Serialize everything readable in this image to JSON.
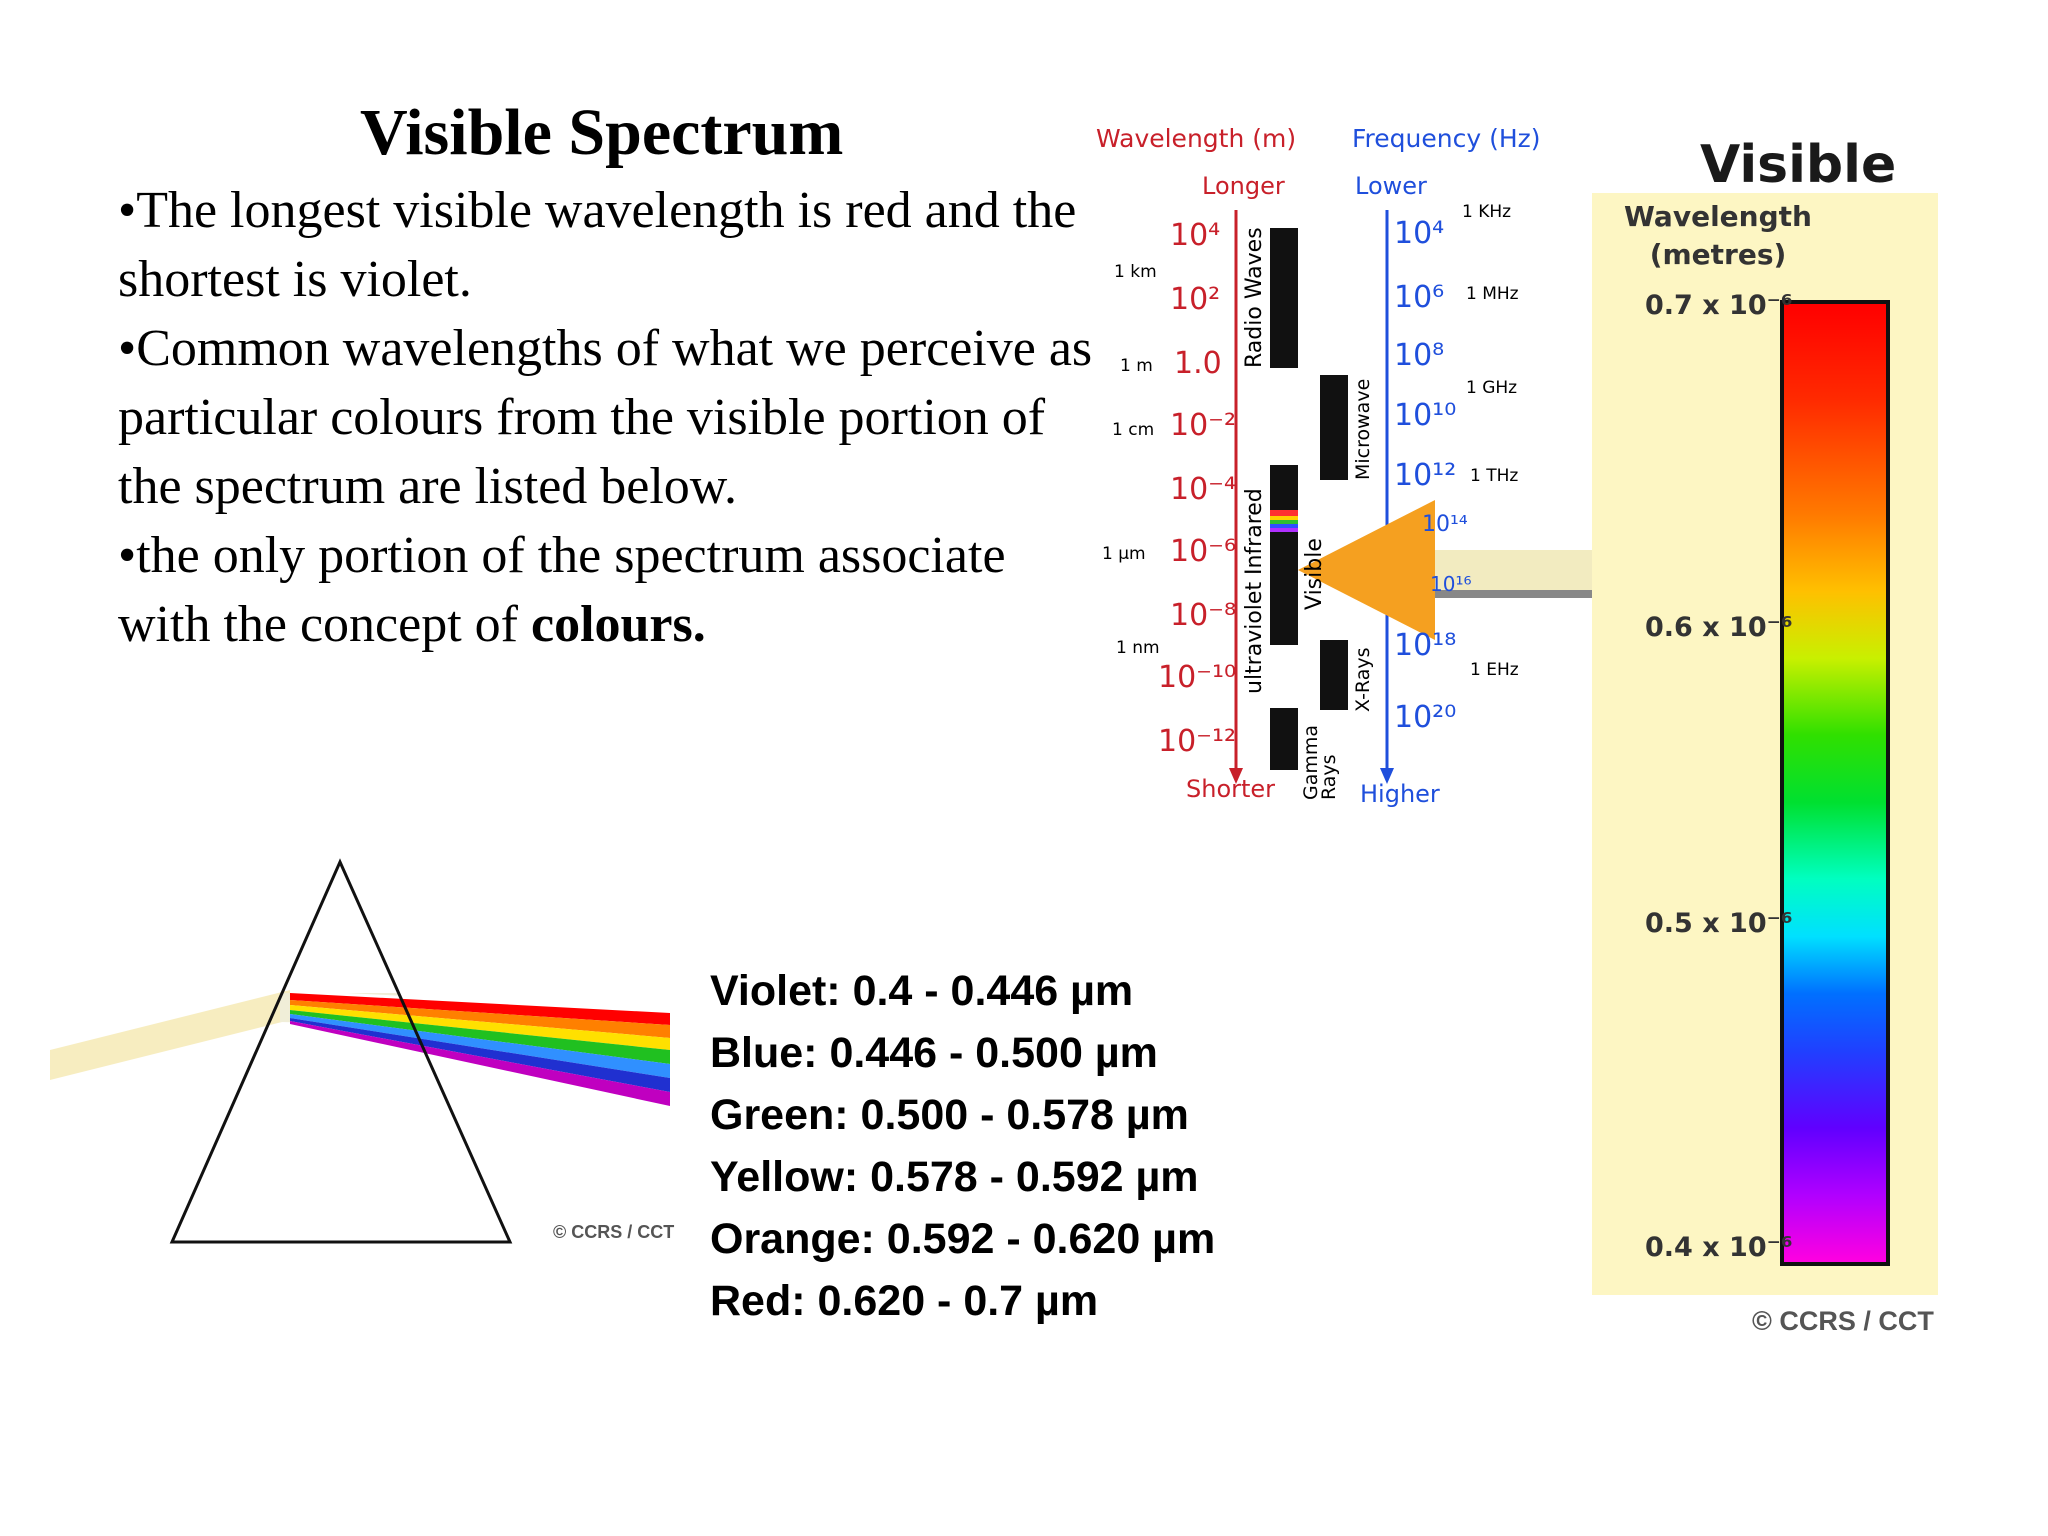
{
  "slide": {
    "title": "Visible Spectrum",
    "bullets": [
      "•The longest visible wavelength is red and the shortest is violet.",
      "•Common wavelengths of what we perceive as particular colours from the visible portion of the spectrum are listed below.",
      "•the only portion of the spectrum associate with the concept of "
    ],
    "bullet3_bold": "colours."
  },
  "colour_ranges": [
    "Violet: 0.4 - 0.446 µm",
    "Blue: 0.446 - 0.500 µm",
    "Green: 0.500 - 0.578 µm",
    "Yellow: 0.578 - 0.592 µm",
    "Orange: 0.592 - 0.620 µm",
    "Red: 0.620 - 0.7 µm"
  ],
  "prism_figure": {
    "credit": "© CCRS / CCT"
  },
  "em_spectrum": {
    "wavelength_header": "Wavelength (m)",
    "frequency_header": "Frequency (Hz)",
    "longer": "Longer",
    "shorter": "Shorter",
    "lower": "Lower",
    "higher": "Higher",
    "wavelength_ticks": [
      "10⁴",
      "10²",
      "1.0",
      "10⁻²",
      "10⁻⁴",
      "10⁻⁶",
      "10⁻⁸",
      "10⁻¹⁰",
      "10⁻¹²"
    ],
    "wavelength_units": [
      "1 km",
      "1 m",
      "1 cm",
      "1 µm",
      "1 nm"
    ],
    "frequency_ticks": [
      "10⁴",
      "10⁶",
      "10⁸",
      "10¹⁰",
      "10¹²",
      "10¹⁴",
      "10¹⁶",
      "10¹⁸",
      "10²⁰"
    ],
    "frequency_units": [
      "1 KHz",
      "1 MHz",
      "1 GHz",
      "1 THz",
      "1 EHz"
    ],
    "bands": [
      "Radio Waves",
      "Microwave",
      "Infrared",
      "Visible",
      "ultraviolet",
      "X-Rays",
      "Gamma Rays"
    ]
  },
  "visible_panel": {
    "title": "Visible",
    "subtitle_1": "Wavelength",
    "subtitle_2": "(metres)",
    "ticks": [
      "0.7 x 10⁻⁶",
      "0.6 x 10⁻⁶",
      "0.5 x 10⁻⁶",
      "0.4 x 10⁻⁶"
    ],
    "credit": "© CCRS / CCT"
  }
}
